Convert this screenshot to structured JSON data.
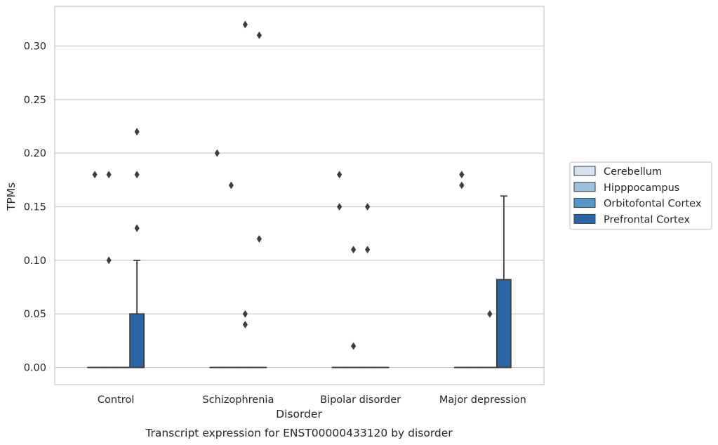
{
  "chart_data": {
    "type": "box",
    "xlabel": "Disorder",
    "ylabel": "TPMs",
    "caption": "Transcript expression for ENST00000433120 by disorder",
    "categories": [
      "Control",
      "Schizophrenia",
      "Bipolar disorder",
      "Major depression"
    ],
    "ylim": [
      -0.016,
      0.337
    ],
    "yticks": [
      0.0,
      0.05,
      0.1,
      0.15,
      0.2,
      0.25,
      0.3
    ],
    "ytick_labels": [
      "0.00",
      "0.05",
      "0.10",
      "0.15",
      "0.20",
      "0.25",
      "0.30"
    ],
    "grid": "horizontal",
    "legend_position": "right",
    "series": [
      {
        "name": "Cerebellum",
        "color": "#d2e2f0",
        "boxes": [
          {
            "q1": 0,
            "median": 0,
            "q3": 0,
            "whisker_low": 0,
            "whisker_high": 0,
            "outliers": [
              0.18
            ]
          },
          {
            "q1": 0,
            "median": 0,
            "q3": 0,
            "whisker_low": 0,
            "whisker_high": 0,
            "outliers": [
              0.2
            ]
          },
          {
            "q1": 0,
            "median": 0,
            "q3": 0,
            "whisker_low": 0,
            "whisker_high": 0,
            "outliers": [
              0.18,
              0.15
            ]
          },
          {
            "q1": 0,
            "median": 0,
            "q3": 0,
            "whisker_low": 0,
            "whisker_high": 0,
            "outliers": [
              0.18,
              0.17
            ]
          }
        ]
      },
      {
        "name": "Hipppocampus",
        "color": "#9ac2dc",
        "boxes": [
          {
            "q1": 0,
            "median": 0,
            "q3": 0,
            "whisker_low": 0,
            "whisker_high": 0,
            "outliers": [
              0.18,
              0.1
            ]
          },
          {
            "q1": 0,
            "median": 0,
            "q3": 0,
            "whisker_low": 0,
            "whisker_high": 0,
            "outliers": [
              0.17
            ]
          },
          {
            "q1": 0,
            "median": 0,
            "q3": 0,
            "whisker_low": 0,
            "whisker_high": 0,
            "outliers": [
              0.11,
              0.02
            ]
          },
          {
            "q1": 0,
            "median": 0,
            "q3": 0,
            "whisker_low": 0,
            "whisker_high": 0,
            "outliers": []
          }
        ]
      },
      {
        "name": "Orbitofontal Cortex",
        "color": "#5597c6",
        "boxes": [
          {
            "q1": 0,
            "median": 0,
            "q3": 0,
            "whisker_low": 0,
            "whisker_high": 0,
            "outliers": []
          },
          {
            "q1": 0,
            "median": 0,
            "q3": 0,
            "whisker_low": 0,
            "whisker_high": 0,
            "outliers": [
              0.32,
              0.05,
              0.04
            ]
          },
          {
            "q1": 0,
            "median": 0,
            "q3": 0,
            "whisker_low": 0,
            "whisker_high": 0,
            "outliers": [
              0.15,
              0.11
            ]
          },
          {
            "q1": 0,
            "median": 0,
            "q3": 0,
            "whisker_low": 0,
            "whisker_high": 0,
            "outliers": [
              0.05
            ]
          }
        ]
      },
      {
        "name": "Prefrontal Cortex",
        "color": "#2a65a6",
        "boxes": [
          {
            "q1": 0,
            "median": 0,
            "q3": 0.05,
            "whisker_low": 0,
            "whisker_high": 0.1,
            "outliers": [
              0.22,
              0.18,
              0.13
            ]
          },
          {
            "q1": 0,
            "median": 0,
            "q3": 0,
            "whisker_low": 0,
            "whisker_high": 0,
            "outliers": [
              0.31,
              0.12
            ]
          },
          {
            "q1": 0,
            "median": 0,
            "q3": 0,
            "whisker_low": 0,
            "whisker_high": 0,
            "outliers": []
          },
          {
            "q1": 0,
            "median": 0,
            "q3": 0.082,
            "whisker_low": 0,
            "whisker_high": 0.16,
            "outliers": []
          }
        ]
      }
    ]
  },
  "colors": {
    "grid": "#cccccc",
    "spine": "#cccccc",
    "box_edge": "#3d3d3d",
    "outlier": "#3d3d3d",
    "legend_border": "#cccccc"
  }
}
